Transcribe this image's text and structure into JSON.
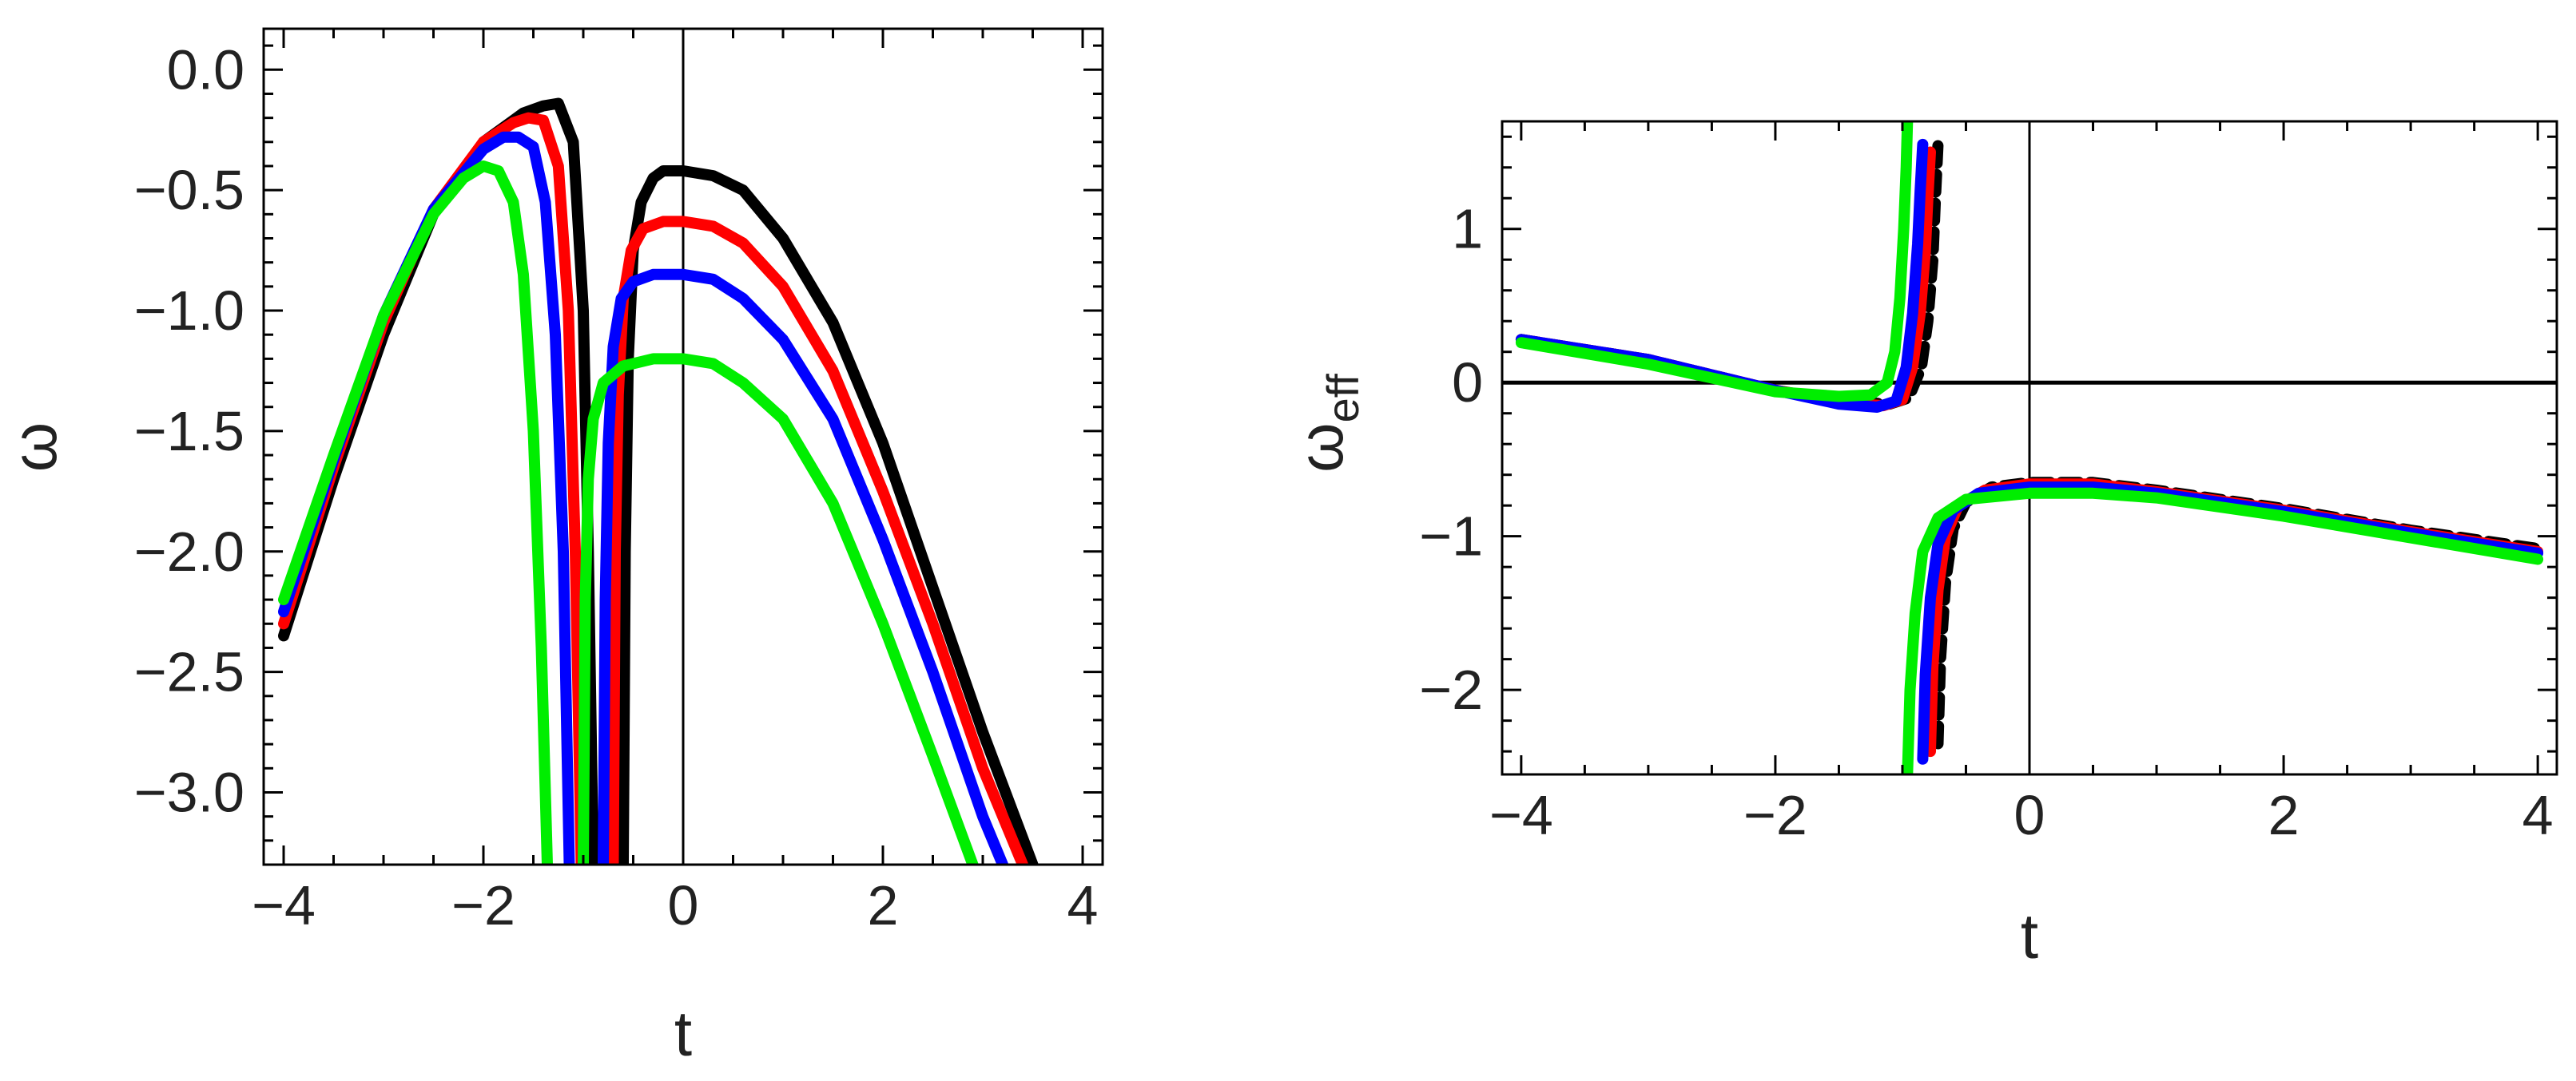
{
  "chart_data": [
    {
      "type": "line",
      "xlabel": "t",
      "ylabel": "ω",
      "xlim": [
        -4.2,
        4.2
      ],
      "ylim": [
        -3.3,
        0.17
      ],
      "xticks": [
        -4,
        -2,
        0,
        2,
        4
      ],
      "yticks": [
        0.0,
        -0.5,
        -1.0,
        -1.5,
        -2.0,
        -2.5,
        -3.0
      ],
      "ytick_labels": [
        "0.0",
        "−0.5",
        "−1.0",
        "−1.5",
        "−2.0",
        "−2.5",
        "−3.0"
      ],
      "xtick_labels": [
        "−4",
        "−2",
        "0",
        "2",
        "4"
      ],
      "series": [
        {
          "color": "#000000",
          "left": {
            "x": [
              -4.0,
              -3.5,
              -3.0,
              -2.5,
              -2.0,
              -1.6,
              -1.4,
              -1.25,
              -1.1,
              -1.0,
              -0.95,
              -0.9
            ],
            "y": [
              -2.35,
              -1.7,
              -1.1,
              -0.6,
              -0.3,
              -0.18,
              -0.15,
              -0.14,
              -0.3,
              -1.0,
              -2.0,
              -3.3
            ]
          },
          "right": {
            "x": [
              -0.6,
              -0.58,
              -0.55,
              -0.5,
              -0.42,
              -0.3,
              -0.2,
              0.0,
              0.3,
              0.6,
              1.0,
              1.5,
              2.0,
              2.5,
              3.0,
              3.5
            ],
            "y": [
              -3.3,
              -2.0,
              -1.2,
              -0.75,
              -0.55,
              -0.45,
              -0.42,
              -0.42,
              -0.44,
              -0.5,
              -0.7,
              -1.05,
              -1.55,
              -2.15,
              -2.75,
              -3.3
            ]
          }
        },
        {
          "color": "#ff0000",
          "left": {
            "x": [
              -4.0,
              -3.5,
              -3.0,
              -2.5,
              -2.0,
              -1.7,
              -1.55,
              -1.4,
              -1.25,
              -1.15,
              -1.08,
              -1.02
            ],
            "y": [
              -2.3,
              -1.65,
              -1.05,
              -0.58,
              -0.3,
              -0.22,
              -0.2,
              -0.21,
              -0.4,
              -1.0,
              -2.0,
              -3.3
            ]
          },
          "right": {
            "x": [
              -0.7,
              -0.68,
              -0.65,
              -0.6,
              -0.52,
              -0.4,
              -0.2,
              0.0,
              0.3,
              0.6,
              1.0,
              1.5,
              2.0,
              2.5,
              3.0,
              3.4
            ],
            "y": [
              -3.3,
              -2.0,
              -1.35,
              -0.95,
              -0.75,
              -0.66,
              -0.63,
              -0.63,
              -0.65,
              -0.72,
              -0.9,
              -1.25,
              -1.75,
              -2.3,
              -2.9,
              -3.3
            ]
          }
        },
        {
          "color": "#0000ff",
          "left": {
            "x": [
              -4.0,
              -3.5,
              -3.0,
              -2.5,
              -2.0,
              -1.8,
              -1.65,
              -1.5,
              -1.38,
              -1.28,
              -1.2,
              -1.14
            ],
            "y": [
              -2.25,
              -1.62,
              -1.02,
              -0.58,
              -0.33,
              -0.28,
              -0.28,
              -0.32,
              -0.55,
              -1.1,
              -2.0,
              -3.3
            ]
          },
          "right": {
            "x": [
              -0.8,
              -0.78,
              -0.75,
              -0.7,
              -0.62,
              -0.5,
              -0.3,
              0.0,
              0.3,
              0.6,
              1.0,
              1.5,
              2.0,
              2.5,
              3.0,
              3.2
            ],
            "y": [
              -3.3,
              -2.2,
              -1.55,
              -1.15,
              -0.95,
              -0.88,
              -0.85,
              -0.85,
              -0.87,
              -0.95,
              -1.12,
              -1.45,
              -1.95,
              -2.5,
              -3.1,
              -3.3
            ]
          }
        },
        {
          "color": "#00ee00",
          "left": {
            "x": [
              -4.0,
              -3.5,
              -3.0,
              -2.5,
              -2.2,
              -2.0,
              -1.85,
              -1.7,
              -1.6,
              -1.5,
              -1.42,
              -1.36
            ],
            "y": [
              -2.2,
              -1.6,
              -1.02,
              -0.6,
              -0.45,
              -0.4,
              -0.42,
              -0.55,
              -0.85,
              -1.5,
              -2.4,
              -3.3
            ]
          },
          "right": {
            "x": [
              -1.0,
              -0.98,
              -0.95,
              -0.9,
              -0.8,
              -0.6,
              -0.3,
              0.0,
              0.3,
              0.6,
              1.0,
              1.5,
              2.0,
              2.5,
              2.9
            ],
            "y": [
              -3.3,
              -2.2,
              -1.7,
              -1.45,
              -1.3,
              -1.23,
              -1.2,
              -1.2,
              -1.22,
              -1.3,
              -1.45,
              -1.8,
              -2.3,
              -2.85,
              -3.3
            ]
          }
        }
      ]
    },
    {
      "type": "line",
      "xlabel": "t",
      "ylabel": "ω",
      "ylabel_sub": "eff",
      "xlim": [
        -4.15,
        4.15
      ],
      "ylim": [
        -2.55,
        1.7
      ],
      "xticks": [
        -4,
        -2,
        0,
        2,
        4
      ],
      "yticks": [
        1,
        0,
        -1,
        -2
      ],
      "ytick_labels": [
        "1",
        "0",
        "−1",
        "−2"
      ],
      "xtick_labels": [
        "−4",
        "−2",
        "0",
        "2",
        "4"
      ],
      "series": [
        {
          "color": "#000000",
          "dashed": true,
          "left": {
            "x": [
              -4.0,
              -3.0,
              -2.0,
              -1.5,
              -1.1,
              -0.95,
              -0.85,
              -0.8,
              -0.76,
              -0.74,
              -0.72
            ],
            "y": [
              0.28,
              0.15,
              -0.05,
              -0.12,
              -0.14,
              -0.1,
              0.1,
              0.4,
              0.8,
              1.2,
              1.55
            ]
          },
          "right": {
            "x": [
              -0.72,
              -0.7,
              -0.66,
              -0.6,
              -0.5,
              -0.3,
              0.0,
              0.5,
              1.0,
              2.0,
              3.0,
              4.0
            ],
            "y": [
              -2.35,
              -1.8,
              -1.3,
              -0.95,
              -0.78,
              -0.68,
              -0.65,
              -0.65,
              -0.7,
              -0.82,
              -0.96,
              -1.08
            ]
          }
        },
        {
          "color": "#ff0000",
          "left": {
            "x": [
              -4.0,
              -3.0,
              -2.0,
              -1.5,
              -1.15,
              -1.0,
              -0.92,
              -0.86,
              -0.82,
              -0.8,
              -0.78
            ],
            "y": [
              0.28,
              0.15,
              -0.05,
              -0.13,
              -0.15,
              -0.11,
              0.1,
              0.45,
              0.85,
              1.2,
              1.5
            ]
          },
          "right": {
            "x": [
              -0.78,
              -0.76,
              -0.72,
              -0.66,
              -0.56,
              -0.35,
              0.0,
              0.5,
              1.0,
              2.0,
              3.0,
              4.0
            ],
            "y": [
              -2.4,
              -1.85,
              -1.35,
              -1.0,
              -0.8,
              -0.7,
              -0.66,
              -0.66,
              -0.71,
              -0.83,
              -0.97,
              -1.1
            ]
          }
        },
        {
          "color": "#0000ff",
          "left": {
            "x": [
              -4.0,
              -3.0,
              -2.0,
              -1.5,
              -1.2,
              -1.05,
              -0.97,
              -0.92,
              -0.88,
              -0.86,
              -0.84
            ],
            "y": [
              0.28,
              0.15,
              -0.05,
              -0.14,
              -0.16,
              -0.12,
              0.1,
              0.45,
              0.9,
              1.25,
              1.55
            ]
          },
          "right": {
            "x": [
              -0.84,
              -0.82,
              -0.78,
              -0.72,
              -0.6,
              -0.4,
              0.0,
              0.5,
              1.0,
              2.0,
              3.0,
              4.0
            ],
            "y": [
              -2.45,
              -1.9,
              -1.4,
              -1.05,
              -0.83,
              -0.72,
              -0.68,
              -0.68,
              -0.72,
              -0.84,
              -0.98,
              -1.11
            ]
          }
        },
        {
          "color": "#00ee00",
          "left": {
            "x": [
              -4.0,
              -3.0,
              -2.0,
              -1.5,
              -1.25,
              -1.12,
              -1.06,
              -1.02,
              -0.99,
              -0.97,
              -0.96
            ],
            "y": [
              0.26,
              0.12,
              -0.06,
              -0.09,
              -0.08,
              0.0,
              0.2,
              0.55,
              1.0,
              1.4,
              1.7
            ]
          },
          "right": {
            "x": [
              -0.96,
              -0.94,
              -0.9,
              -0.84,
              -0.72,
              -0.5,
              0.0,
              0.5,
              1.0,
              2.0,
              3.0,
              4.0
            ],
            "y": [
              -2.55,
              -2.0,
              -1.5,
              -1.1,
              -0.88,
              -0.76,
              -0.72,
              -0.72,
              -0.75,
              -0.87,
              -1.01,
              -1.15
            ]
          }
        }
      ]
    }
  ]
}
